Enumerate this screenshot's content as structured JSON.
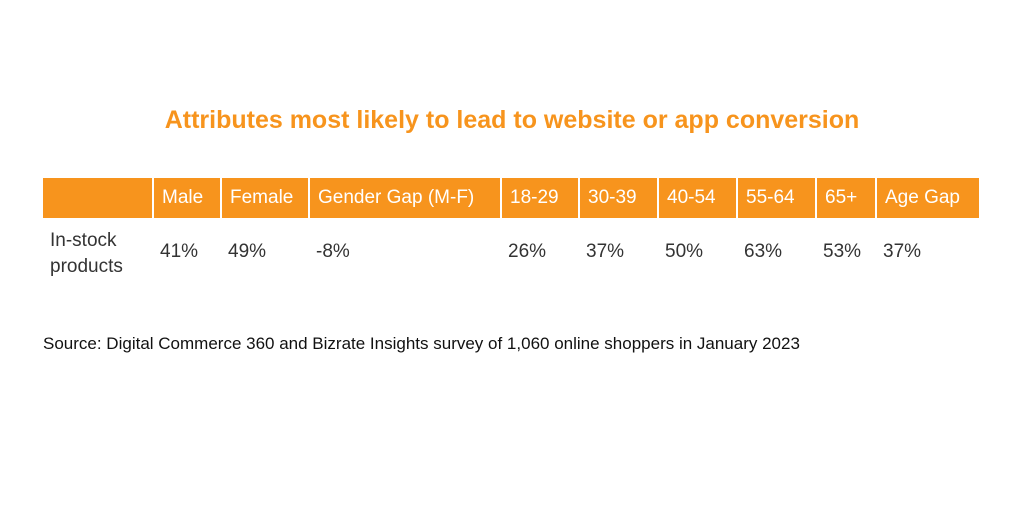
{
  "title": "Attributes most likely to lead to website or app conversion",
  "table": {
    "headers": [
      "Male",
      "Female",
      "Gender Gap (M-F)",
      "18-29",
      "30-39",
      "40-54",
      "55-64",
      "65+",
      "Age Gap"
    ],
    "rows": [
      {
        "label": "In-stock products",
        "values": [
          "41%",
          "49%",
          "-8%",
          "26%",
          "37%",
          "50%",
          "63%",
          "53%",
          "37%"
        ]
      }
    ]
  },
  "source": "Source: Digital Commerce 360 and Bizrate Insights survey of 1,060 online shoppers in January 2023"
}
